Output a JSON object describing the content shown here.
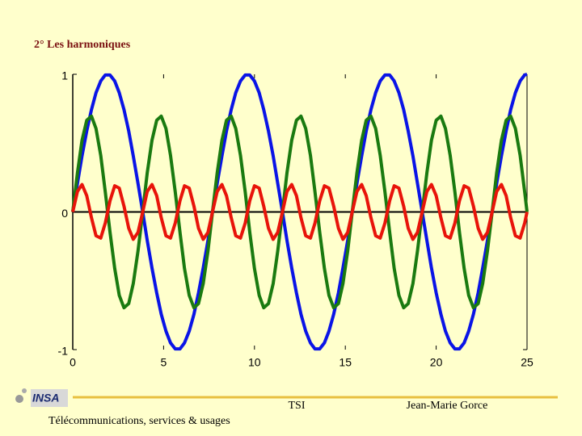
{
  "header": {
    "title": "2° Les harmoniques"
  },
  "chart_data": {
    "type": "line",
    "x": [
      0,
      0.26,
      0.51,
      0.77,
      1.03,
      1.28,
      1.54,
      1.79,
      2.05,
      2.31,
      2.56,
      2.82,
      3.08,
      3.33,
      3.59,
      3.85,
      4.1,
      4.36,
      4.62,
      4.87,
      5.13,
      5.38,
      5.64,
      5.9,
      6.15,
      6.41,
      6.67,
      6.92,
      7.18,
      7.44,
      7.69,
      7.95,
      8.21,
      8.46,
      8.72,
      8.97,
      9.23,
      9.49,
      9.74,
      10,
      10.26,
      10.51,
      10.77,
      11.03,
      11.28,
      11.54,
      11.79,
      12.05,
      12.31,
      12.56,
      12.82,
      13.08,
      13.33,
      13.59,
      13.85,
      14.1,
      14.36,
      14.62,
      14.87,
      15.13,
      15.38,
      15.64,
      15.9,
      16.15,
      16.41,
      16.67,
      16.92,
      17.18,
      17.44,
      17.69,
      17.95,
      18.21,
      18.46,
      18.72,
      18.97,
      19.23,
      19.49,
      19.74,
      20,
      20.26,
      20.51,
      20.77,
      21.03,
      21.28,
      21.54,
      21.79,
      22.05,
      22.31,
      22.56,
      22.82,
      23.08,
      23.33,
      23.59,
      23.85,
      24.1,
      24.36,
      24.62,
      24.87,
      25
    ],
    "series": [
      {
        "color": "#0a14e6",
        "values": [
          0,
          0.208,
          0.407,
          0.588,
          0.743,
          0.866,
          0.951,
          0.995,
          0.995,
          0.951,
          0.866,
          0.743,
          0.588,
          0.407,
          0.208,
          0,
          -0.208,
          -0.407,
          -0.588,
          -0.743,
          -0.866,
          -0.951,
          -0.995,
          -0.995,
          -0.951,
          -0.866,
          -0.743,
          -0.588,
          -0.407,
          -0.208,
          0,
          0.208,
          0.407,
          0.588,
          0.743,
          0.866,
          0.951,
          0.995,
          0.995,
          0.951,
          0.866,
          0.743,
          0.588,
          0.407,
          0.208,
          0,
          -0.208,
          -0.407,
          -0.588,
          -0.743,
          -0.866,
          -0.951,
          -0.995,
          -0.995,
          -0.951,
          -0.866,
          -0.743,
          -0.588,
          -0.407,
          -0.208,
          0,
          0.208,
          0.407,
          0.588,
          0.743,
          0.866,
          0.951,
          0.995,
          0.995,
          0.951,
          0.866,
          0.743,
          0.588,
          0.407,
          0.208,
          0,
          -0.208,
          -0.407,
          -0.588,
          -0.743,
          -0.866,
          -0.951,
          -0.995,
          -0.995,
          -0.951,
          -0.866,
          -0.743,
          -0.588,
          -0.407,
          -0.208,
          0,
          0.208,
          0.407,
          0.588,
          0.743,
          0.866,
          0.951,
          0.995,
          1
        ]
      },
      {
        "color": "#1a7a10",
        "values": [
          0,
          0.285,
          0.52,
          0.666,
          0.696,
          0.606,
          0.411,
          0.146,
          -0.146,
          -0.411,
          -0.606,
          -0.696,
          -0.666,
          -0.52,
          -0.285,
          0,
          0.285,
          0.52,
          0.666,
          0.696,
          0.606,
          0.411,
          0.146,
          -0.146,
          -0.411,
          -0.606,
          -0.696,
          -0.666,
          -0.52,
          -0.285,
          0,
          0.285,
          0.52,
          0.666,
          0.696,
          0.606,
          0.411,
          0.146,
          -0.146,
          -0.411,
          -0.606,
          -0.696,
          -0.666,
          -0.52,
          -0.285,
          0,
          0.285,
          0.52,
          0.666,
          0.696,
          0.606,
          0.411,
          0.146,
          -0.146,
          -0.411,
          -0.606,
          -0.696,
          -0.666,
          -0.52,
          -0.285,
          0,
          0.285,
          0.52,
          0.666,
          0.696,
          0.606,
          0.411,
          0.146,
          -0.146,
          -0.411,
          -0.606,
          -0.696,
          -0.666,
          -0.52,
          -0.285,
          0,
          0.285,
          0.52,
          0.666,
          0.696,
          0.606,
          0.411,
          0.146,
          -0.146,
          -0.411,
          -0.606,
          -0.696,
          -0.666,
          -0.52,
          -0.285,
          0,
          0.285,
          0.52,
          0.666,
          0.696,
          0.606,
          0.411,
          0.146,
          0
        ]
      },
      {
        "color": "#e8140a",
        "values": [
          0,
          0.149,
          0.199,
          0.118,
          -0.042,
          -0.173,
          -0.19,
          -0.081,
          0.081,
          0.19,
          0.173,
          0.042,
          -0.118,
          -0.199,
          -0.149,
          0,
          0.149,
          0.199,
          0.118,
          -0.042,
          -0.173,
          -0.19,
          -0.081,
          0.081,
          0.19,
          0.173,
          0.042,
          -0.118,
          -0.199,
          -0.149,
          0,
          0.149,
          0.199,
          0.118,
          -0.042,
          -0.173,
          -0.19,
          -0.081,
          0.081,
          0.19,
          0.173,
          0.042,
          -0.118,
          -0.199,
          -0.149,
          0,
          0.149,
          0.199,
          0.118,
          -0.042,
          -0.173,
          -0.19,
          -0.081,
          0.081,
          0.19,
          0.173,
          0.042,
          -0.118,
          -0.199,
          -0.149,
          0,
          0.149,
          0.199,
          0.118,
          -0.042,
          -0.173,
          -0.19,
          -0.081,
          0.081,
          0.19,
          0.173,
          0.042,
          -0.118,
          -0.199,
          -0.149,
          0,
          0.149,
          0.199,
          0.118,
          -0.042,
          -0.173,
          -0.19,
          -0.081,
          0.081,
          0.19,
          0.173,
          0.042,
          -0.118,
          -0.199,
          -0.149,
          0,
          0.149,
          0.199,
          0.118,
          -0.042,
          -0.173,
          -0.19,
          -0.081,
          0
        ]
      }
    ],
    "xlim": [
      0,
      25
    ],
    "xticks": [
      0,
      5,
      10,
      15,
      20,
      25
    ],
    "ylim": [
      -1,
      1
    ],
    "yticks": [
      -1,
      0,
      1
    ]
  },
  "footer": {
    "logo": "INSA",
    "course": "TSI",
    "author": "Jean-Marie Gorce",
    "tagline": "Télécommunications, services & usages"
  }
}
